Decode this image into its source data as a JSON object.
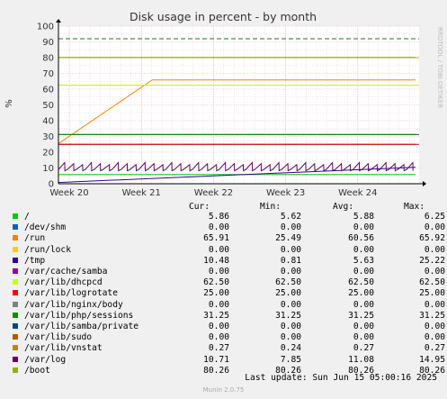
{
  "chart_data": {
    "type": "line",
    "title": "Disk usage in percent - by month",
    "ylabel": "%",
    "watermark": "RRDTOOL / TOBI OETIKER",
    "ylim": [
      0,
      100
    ],
    "yticks": [
      0,
      10,
      20,
      30,
      40,
      50,
      60,
      70,
      80,
      90,
      100
    ],
    "xticks": [
      "Week 20",
      "Week 21",
      "Week 22",
      "Week 23",
      "Week 24"
    ],
    "xlim": [
      0,
      5
    ],
    "grid": true,
    "thresholds": [
      {
        "value": 92,
        "color": "#1a7a1a",
        "style": "dashed"
      },
      {
        "value": 80,
        "color": "#d4a000",
        "style": "solid"
      },
      {
        "value": 62.5,
        "color": "#f0d000",
        "style": "solid"
      },
      {
        "value": 31.25,
        "color": "#006400",
        "style": "solid"
      },
      {
        "value": 25,
        "color": "#cc0000",
        "style": "solid"
      }
    ],
    "series": [
      {
        "name": "/",
        "color": "#00cc00",
        "shape": "flat",
        "values": [
          5.86
        ]
      },
      {
        "name": "/run",
        "color": "#ff8000",
        "shape": "ramp",
        "x": [
          0,
          1.3,
          4.95
        ],
        "values": [
          25.49,
          65.91,
          65.91
        ]
      },
      {
        "name": "/tmp",
        "color": "#330099",
        "shape": "ramp",
        "x": [
          0,
          4.95
        ],
        "values": [
          0.81,
          10.48
        ]
      },
      {
        "name": "/var/lib/dhcpcd",
        "color": "#ccff00",
        "shape": "flat",
        "values": [
          62.5
        ]
      },
      {
        "name": "/var/lib/logrotate",
        "color": "#cc0000",
        "shape": "flat",
        "values": [
          25.0
        ]
      },
      {
        "name": "/var/lib/php/sessions",
        "color": "#008f00",
        "shape": "flat",
        "values": [
          31.25
        ]
      },
      {
        "name": "/var/log",
        "color": "#660066",
        "shape": "sawtooth",
        "values": [
          7.85,
          14.95
        ]
      },
      {
        "name": "/boot",
        "color": "#99cc00",
        "shape": "flat",
        "values": [
          80.26
        ]
      }
    ]
  },
  "legend": {
    "headers": {
      "cur": "Cur:",
      "min": "Min:",
      "avg": "Avg:",
      "max": "Max:"
    },
    "rows": [
      {
        "label": "/",
        "color": "#00cc00",
        "cur": "5.86",
        "min": "5.62",
        "avg": "5.88",
        "max": "6.25"
      },
      {
        "label": "/dev/shm",
        "color": "#0066b3",
        "cur": "0.00",
        "min": "0.00",
        "avg": "0.00",
        "max": "0.00"
      },
      {
        "label": "/run",
        "color": "#ff8000",
        "cur": "65.91",
        "min": "25.49",
        "avg": "60.56",
        "max": "65.92"
      },
      {
        "label": "/run/lock",
        "color": "#ffcc00",
        "cur": "0.00",
        "min": "0.00",
        "avg": "0.00",
        "max": "0.00"
      },
      {
        "label": "/tmp",
        "color": "#330099",
        "cur": "10.48",
        "min": "0.81",
        "avg": "5.63",
        "max": "25.22"
      },
      {
        "label": "/var/cache/samba",
        "color": "#990099",
        "cur": "0.00",
        "min": "0.00",
        "avg": "0.00",
        "max": "0.00"
      },
      {
        "label": "/var/lib/dhcpcd",
        "color": "#ccff00",
        "cur": "62.50",
        "min": "62.50",
        "avg": "62.50",
        "max": "62.50"
      },
      {
        "label": "/var/lib/logrotate",
        "color": "#ff0000",
        "cur": "25.00",
        "min": "25.00",
        "avg": "25.00",
        "max": "25.00"
      },
      {
        "label": "/var/lib/nginx/body",
        "color": "#808080",
        "cur": "0.00",
        "min": "0.00",
        "avg": "0.00",
        "max": "0.00"
      },
      {
        "label": "/var/lib/php/sessions",
        "color": "#008f00",
        "cur": "31.25",
        "min": "31.25",
        "avg": "31.25",
        "max": "31.25"
      },
      {
        "label": "/var/lib/samba/private",
        "color": "#00487d",
        "cur": "0.00",
        "min": "0.00",
        "avg": "0.00",
        "max": "0.00"
      },
      {
        "label": "/var/lib/sudo",
        "color": "#b35a00",
        "cur": "0.00",
        "min": "0.00",
        "avg": "0.00",
        "max": "0.00"
      },
      {
        "label": "/var/lib/vnstat",
        "color": "#b38f00",
        "cur": "0.27",
        "min": "0.24",
        "avg": "0.27",
        "max": "0.27"
      },
      {
        "label": "/var/log",
        "color": "#6b006b",
        "cur": "10.71",
        "min": "7.85",
        "avg": "11.08",
        "max": "14.95"
      },
      {
        "label": "/boot",
        "color": "#8fb300",
        "cur": "80.26",
        "min": "80.26",
        "avg": "80.26",
        "max": "80.26"
      }
    ]
  },
  "footer": {
    "last_update": "Last update: Sun Jun 15 05:00:16 2025",
    "munin": "Munin 2.0.75"
  }
}
